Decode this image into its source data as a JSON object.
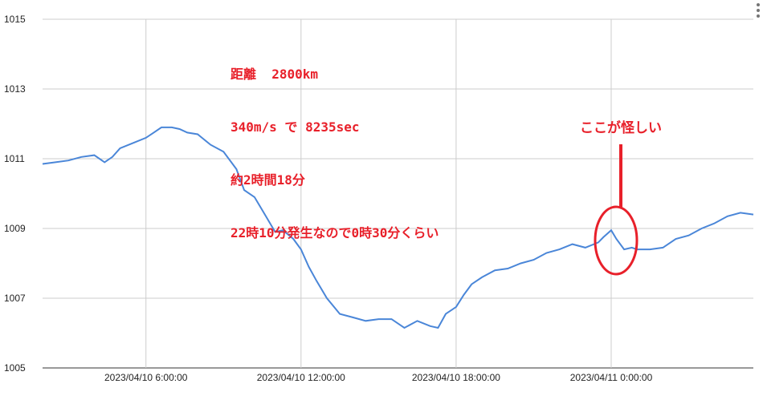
{
  "chart_data": {
    "type": "line",
    "x_tick_labels": [
      "2023/04/10 6:00:00",
      "2023/04/10 12:00:00",
      "2023/04/10 18:00:00",
      "2023/04/11 0:00:00"
    ],
    "x_tick_hours": [
      6,
      12,
      18,
      24
    ],
    "xlim_hours": [
      2,
      29.5
    ],
    "y_ticks": [
      1005,
      1007,
      1009,
      1011,
      1013,
      1015
    ],
    "ylim": [
      1005,
      1015
    ],
    "grid": true,
    "line_color": "#4a86d8",
    "annotation_color": "#e8202a",
    "series": [
      {
        "x_hours": [
          2.0,
          2.5,
          3.0,
          3.5,
          4.0,
          4.4,
          4.7,
          5.0,
          5.5,
          6.0,
          6.3,
          6.6,
          7.0,
          7.3,
          7.6,
          8.0,
          8.5,
          9.0,
          9.5,
          9.8,
          10.2,
          10.6,
          11.0,
          11.3,
          11.7,
          12.0,
          12.3,
          12.6,
          13.0,
          13.5,
          14.0,
          14.5,
          15.0,
          15.5,
          16.0,
          16.5,
          17.0,
          17.3,
          17.6,
          18.0,
          18.3,
          18.6,
          19.0,
          19.5,
          20.0,
          20.5,
          21.0,
          21.5,
          22.0,
          22.5,
          23.0,
          23.5,
          23.7,
          24.0,
          24.2,
          24.5,
          24.8,
          25.0,
          25.5,
          26.0,
          26.5,
          27.0,
          27.5,
          28.0,
          28.5,
          29.0,
          29.5
        ],
        "values": [
          1010.85,
          1010.9,
          1010.95,
          1011.05,
          1011.1,
          1010.9,
          1011.05,
          1011.3,
          1011.45,
          1011.6,
          1011.75,
          1011.9,
          1011.9,
          1011.85,
          1011.75,
          1011.7,
          1011.4,
          1011.2,
          1010.7,
          1010.1,
          1009.9,
          1009.4,
          1008.9,
          1008.95,
          1008.7,
          1008.4,
          1007.9,
          1007.5,
          1007.0,
          1006.55,
          1006.45,
          1006.35,
          1006.4,
          1006.4,
          1006.15,
          1006.35,
          1006.2,
          1006.15,
          1006.55,
          1006.75,
          1007.1,
          1007.4,
          1007.6,
          1007.8,
          1007.85,
          1008.0,
          1008.1,
          1008.3,
          1008.4,
          1008.55,
          1008.45,
          1008.6,
          1008.75,
          1008.95,
          1008.7,
          1008.4,
          1008.45,
          1008.4,
          1008.4,
          1008.45,
          1008.7,
          1008.8,
          1009.0,
          1009.15,
          1009.35,
          1009.45,
          1009.4
        ]
      }
    ],
    "annotations": {
      "note_lines": [
        "距離  2800km",
        "340m/s で 8235sec",
        "約2時間18分",
        "22時10分発生なので0時30分くらい"
      ],
      "callout": "ここが怪しい"
    }
  }
}
